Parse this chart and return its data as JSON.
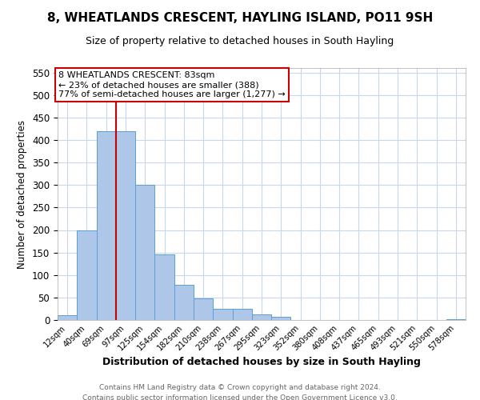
{
  "title": "8, WHEATLANDS CRESCENT, HAYLING ISLAND, PO11 9SH",
  "subtitle": "Size of property relative to detached houses in South Hayling",
  "xlabel": "Distribution of detached houses by size in South Hayling",
  "ylabel": "Number of detached properties",
  "bar_labels": [
    "12sqm",
    "40sqm",
    "69sqm",
    "97sqm",
    "125sqm",
    "154sqm",
    "182sqm",
    "210sqm",
    "238sqm",
    "267sqm",
    "295sqm",
    "323sqm",
    "352sqm",
    "380sqm",
    "408sqm",
    "437sqm",
    "465sqm",
    "493sqm",
    "521sqm",
    "550sqm",
    "578sqm"
  ],
  "bar_values": [
    10,
    200,
    420,
    420,
    300,
    145,
    78,
    48,
    25,
    25,
    13,
    8,
    0,
    0,
    0,
    0,
    0,
    0,
    0,
    0,
    2
  ],
  "bar_color": "#aec6e8",
  "bar_edgecolor": "#5a9fd4",
  "ylim": [
    0,
    560
  ],
  "yticks": [
    0,
    50,
    100,
    150,
    200,
    250,
    300,
    350,
    400,
    450,
    500,
    550
  ],
  "vline_x": 2.5,
  "vline_color": "#cc0000",
  "annotation_title": "8 WHEATLANDS CRESCENT: 83sqm",
  "annotation_line1": "← 23% of detached houses are smaller (388)",
  "annotation_line2": "77% of semi-detached houses are larger (1,277) →",
  "annotation_box_color": "#ffffff",
  "annotation_box_edgecolor": "#cc0000",
  "footer1": "Contains HM Land Registry data © Crown copyright and database right 2024.",
  "footer2": "Contains public sector information licensed under the Open Government Licence v3.0.",
  "background_color": "#ffffff",
  "grid_color": "#c8d8ea",
  "title_fontsize": 11,
  "subtitle_fontsize": 9
}
